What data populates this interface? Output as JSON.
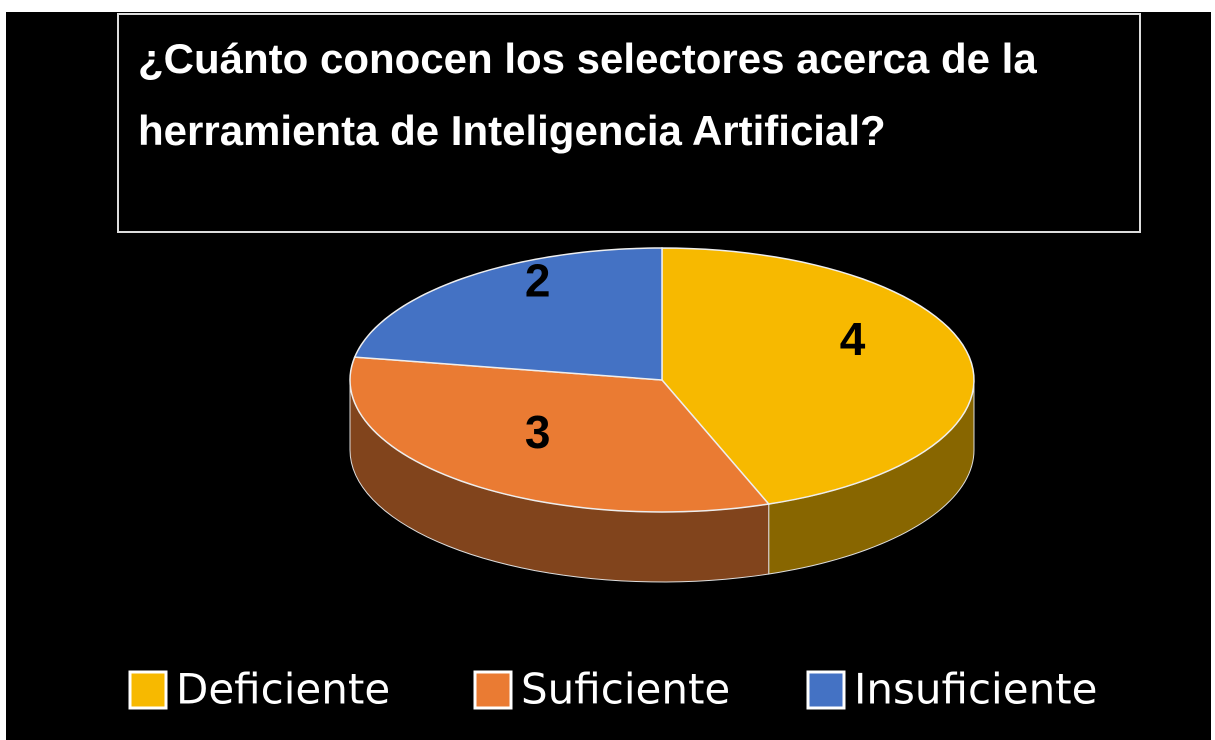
{
  "chart_data": {
    "type": "pie",
    "title": "¿Cuánto conocen los selectores acerca de la herramienta de Inteligencia Artificial?",
    "title_lines": [
      "¿Cuánto conocen los selectores acerca de la",
      "herramienta de Inteligencia Artificial?"
    ],
    "categories": [
      "Deficiente",
      "Suficiente",
      "Insuficiente"
    ],
    "values": [
      4,
      3,
      2
    ],
    "colors": [
      "#F7B900",
      "#EA7B33",
      "#4472C4"
    ],
    "legend": "bottom"
  }
}
